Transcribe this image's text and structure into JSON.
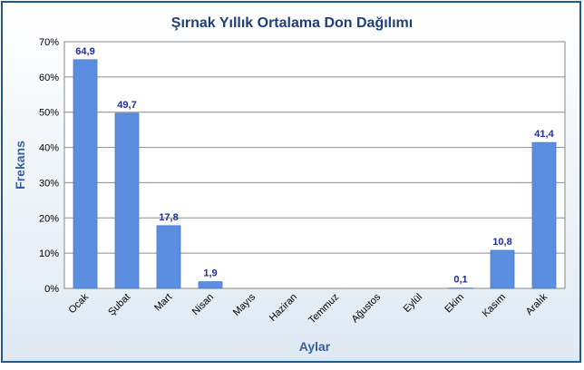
{
  "chart_data": {
    "type": "bar",
    "title": "Şırnak Yıllık Ortalama Don Dağılımı",
    "xlabel": "Aylar",
    "ylabel": "Frekans",
    "categories": [
      "Ocak",
      "Şubat",
      "Mart",
      "Nisan",
      "Mayıs",
      "Haziran",
      "Temmuz",
      "Ağustos",
      "Eylül",
      "Ekim",
      "Kasım",
      "Aralık"
    ],
    "values": [
      64.9,
      49.7,
      17.8,
      1.9,
      0,
      0,
      0,
      0,
      0,
      0.1,
      10.8,
      41.4
    ],
    "data_labels": [
      "64,9",
      "49,7",
      "17,8",
      "1,9",
      "",
      "",
      "",
      "",
      "",
      "0,1",
      "10,8",
      "41,4"
    ],
    "ylim": [
      0,
      70
    ],
    "yticks": [
      0,
      10,
      20,
      30,
      40,
      50,
      60,
      70
    ],
    "ytick_labels": [
      "0%",
      "10%",
      "20%",
      "30%",
      "40%",
      "50%",
      "60%",
      "70%"
    ],
    "grid": true,
    "legend": "none",
    "colors": {
      "bar": "#5b8ee0",
      "bar_edge": "#4a7bc8",
      "data_label": "#1f2d9c",
      "title": "#1f3f7a",
      "axis_title": "#3a5f9e",
      "frame": "#1f5a8c",
      "grid": "#8c8c8c"
    }
  }
}
